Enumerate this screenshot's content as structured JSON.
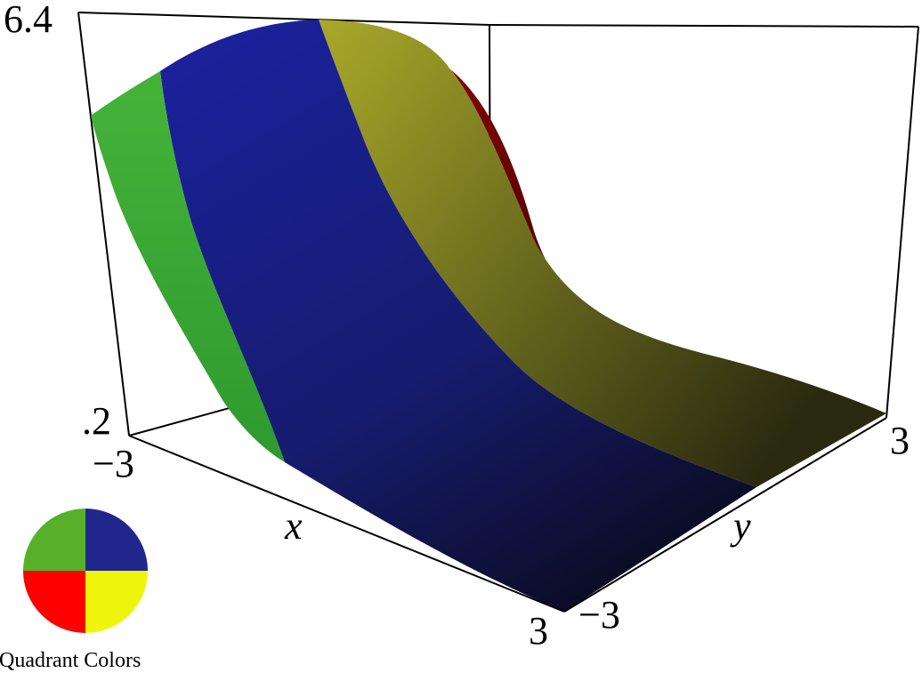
{
  "chart_data": {
    "type": "surface3d",
    "z_ticks": {
      "top": "6.4",
      "bottom": ".2"
    },
    "x_axis": {
      "label": "x",
      "ticks": [
        "−3",
        "3"
      ]
    },
    "y_axis": {
      "label": "y",
      "ticks": [
        "−3",
        "3"
      ]
    },
    "bands": [
      {
        "quadrant": "II",
        "color": "#3aa536"
      },
      {
        "quadrant": "I",
        "color": "#1c2590"
      },
      {
        "quadrant": "IV",
        "color": "#a8a82c"
      },
      {
        "quadrant": "III",
        "color": "#7a0303"
      }
    ],
    "legend": {
      "label": "Quadrant Colors",
      "quadrants": [
        {
          "name": "II",
          "color": "#58b02a"
        },
        {
          "name": "I",
          "color": "#21268c"
        },
        {
          "name": "III",
          "color": "#ff0000"
        },
        {
          "name": "IV",
          "color": "#eef50a"
        }
      ]
    }
  }
}
